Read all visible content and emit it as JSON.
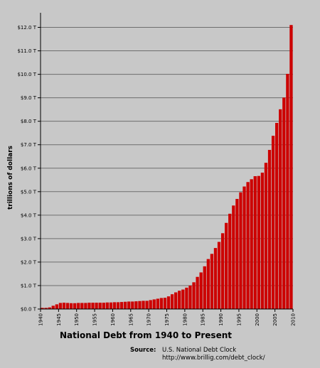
{
  "chart_data": {
    "type": "bar",
    "title": "National Debt from 1940 to Present",
    "ylabel": "trillions of dollars",
    "xlabel": "",
    "source_label": "Source:",
    "source_name": "U.S. National Debt Clock",
    "source_url": "http://www.brillig.com/debt_clock/",
    "ylim": [
      0,
      12.5
    ],
    "y_ticks": [
      0,
      1,
      2,
      3,
      4,
      5,
      6,
      7,
      8,
      9,
      10,
      11,
      12
    ],
    "y_tick_labels": [
      "$0.0 T",
      "$1.0 T",
      "$2.0 T",
      "$3.0 T",
      "$4.0 T",
      "$5.0 T",
      "$6.0 T",
      "$7.0 T",
      "$8.0 T",
      "$9.0 T",
      "$10.0 T",
      "$11.0 T",
      "$12.0 T"
    ],
    "x_ticks": [
      1940,
      1945,
      1950,
      1955,
      1960,
      1965,
      1970,
      1975,
      1980,
      1985,
      1990,
      1995,
      2000,
      2005,
      2010
    ],
    "x_tick_labels": [
      "1940",
      "1945",
      "1950",
      "1955",
      "1960",
      "1965",
      "1970",
      "1975",
      "1980",
      "1985",
      "1990",
      "1995",
      "2000",
      "2005",
      "2010"
    ],
    "xlim": [
      1940,
      2010
    ],
    "grid": true,
    "bar_color": "#cc0000",
    "categories": [
      1940,
      1941,
      1942,
      1943,
      1944,
      1945,
      1946,
      1947,
      1948,
      1949,
      1950,
      1951,
      1952,
      1953,
      1954,
      1955,
      1956,
      1957,
      1958,
      1959,
      1960,
      1961,
      1962,
      1963,
      1964,
      1965,
      1966,
      1967,
      1968,
      1969,
      1970,
      1971,
      1972,
      1973,
      1974,
      1975,
      1976,
      1977,
      1978,
      1979,
      1980,
      1981,
      1982,
      1983,
      1984,
      1985,
      1986,
      1987,
      1988,
      1989,
      1990,
      1991,
      1992,
      1993,
      1994,
      1995,
      1996,
      1997,
      1998,
      1999,
      2000,
      2001,
      2002,
      2003,
      2004,
      2005,
      2006,
      2007,
      2008,
      2009
    ],
    "values": [
      0.05,
      0.05,
      0.07,
      0.14,
      0.2,
      0.26,
      0.27,
      0.26,
      0.25,
      0.25,
      0.26,
      0.26,
      0.26,
      0.27,
      0.27,
      0.27,
      0.27,
      0.27,
      0.28,
      0.28,
      0.29,
      0.29,
      0.3,
      0.31,
      0.32,
      0.32,
      0.33,
      0.34,
      0.35,
      0.35,
      0.38,
      0.41,
      0.44,
      0.47,
      0.48,
      0.54,
      0.63,
      0.71,
      0.78,
      0.83,
      0.91,
      1.0,
      1.14,
      1.37,
      1.56,
      1.82,
      2.13,
      2.35,
      2.6,
      2.86,
      3.23,
      3.67,
      4.06,
      4.41,
      4.69,
      4.97,
      5.22,
      5.41,
      5.53,
      5.66,
      5.67,
      5.81,
      6.23,
      6.78,
      7.38,
      7.93,
      8.51,
      9.01,
      10.02,
      12.1
    ]
  }
}
